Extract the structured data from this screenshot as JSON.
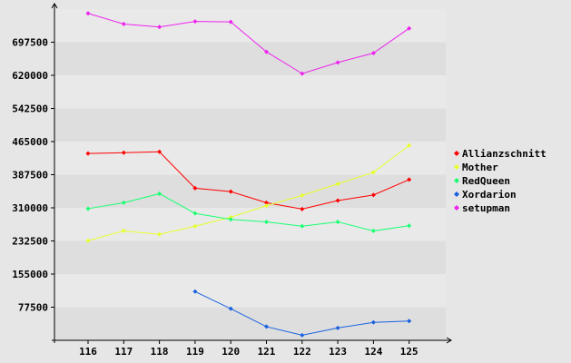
{
  "chart_data": {
    "type": "line",
    "title": "",
    "xlabel": "",
    "ylabel": "",
    "categories": [
      "116",
      "117",
      "118",
      "119",
      "120",
      "121",
      "122",
      "123",
      "124",
      "125"
    ],
    "y_ticks": [
      77500,
      155000,
      232500,
      310000,
      387500,
      465000,
      542500,
      620000,
      697500
    ],
    "y_tick_labels": [
      "77500",
      "155000",
      "232500",
      "310000",
      "387500",
      "465000",
      "542500",
      "620000",
      "697500"
    ],
    "ylim": [
      0,
      775000
    ],
    "grid": "horizontal-bands",
    "legend": "right",
    "series": [
      {
        "name": "Allianzschnitt",
        "color": "#ff0000",
        "values": [
          437000,
          439000,
          441000,
          356000,
          348000,
          322000,
          307000,
          327000,
          340000,
          376000
        ]
      },
      {
        "name": "Mother",
        "color": "#e8ff2c",
        "values": [
          233000,
          256000,
          248000,
          267000,
          288000,
          315000,
          339000,
          366000,
          393000,
          456000
        ]
      },
      {
        "name": "RedQueen",
        "color": "#1aff72",
        "values": [
          308000,
          322000,
          343000,
          297000,
          283000,
          277000,
          267000,
          277000,
          256000,
          268000
        ]
      },
      {
        "name": "Xordarion",
        "color": "#1861e0",
        "values": [
          null,
          null,
          null,
          114000,
          74000,
          32000,
          12000,
          29000,
          42000,
          45000
        ]
      },
      {
        "name": "setupman",
        "color": "#ee22ee",
        "values": [
          765000,
          740000,
          733000,
          746000,
          745000,
          675000,
          624000,
          650000,
          672000,
          730000
        ]
      }
    ]
  }
}
